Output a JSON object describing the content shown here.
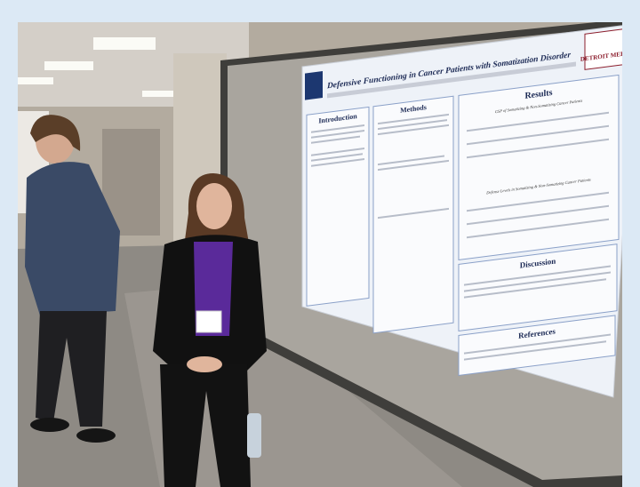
{
  "poster": {
    "title": "Defensive Functioning in Cancer Patients with Somatization Disorder",
    "logo": "DETROIT MERCY",
    "sections": [
      "Introduction",
      "Methods",
      "Results",
      "Discussion",
      "References"
    ],
    "results_tables": [
      "GSP of Somatizing & Non-Somatizing Cancer Patients",
      "Defense Levels in Somatizing & Non-Somatizing Cancer Patients"
    ]
  }
}
